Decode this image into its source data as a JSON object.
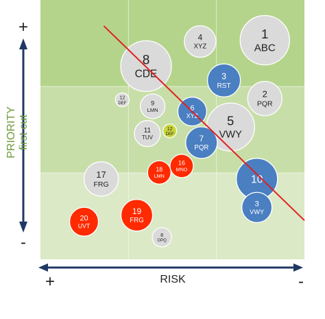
{
  "chart_data": {
    "type": "scatter",
    "title": "",
    "xlabel": "RISK",
    "ylabel": "PRIORITY",
    "ylabel_sub": "first cut",
    "x_low_label": "+",
    "x_high_label": "-",
    "y_high_label": "+",
    "y_low_label": "-",
    "grid": true,
    "grid_columns": 3,
    "grid_rows": 3,
    "xlim": [
      0,
      100
    ],
    "ylim": [
      0,
      100
    ],
    "trend_line": {
      "from": [
        24,
        90
      ],
      "to": [
        100,
        15
      ],
      "color": "#e02020"
    },
    "colors": {
      "grey": "#dadada",
      "blue": "#4a7fc1",
      "red": "#ff2a00",
      "yellow": "#c8d63c",
      "background_top": "#b4d48c",
      "background_mid": "#c8dea8",
      "background_bottom": "#dbe9c6",
      "axis": "#1f3864",
      "ylabel": "#6f9a3a"
    },
    "points": [
      {
        "id": "1",
        "label": "ABC",
        "x": 85,
        "y": 84.5,
        "size": 36,
        "color": "grey"
      },
      {
        "id": "4",
        "label": "XYZ",
        "x": 60.5,
        "y": 84,
        "size": 23,
        "color": "grey"
      },
      {
        "id": "8",
        "label": "CDE",
        "x": 40,
        "y": 74.5,
        "size": 37,
        "color": "grey"
      },
      {
        "id": "3",
        "label": "RST",
        "x": 69.5,
        "y": 69,
        "size": 24,
        "color": "blue"
      },
      {
        "id": "2",
        "label": "PQR",
        "x": 85,
        "y": 62,
        "size": 25,
        "color": "grey"
      },
      {
        "id": "12",
        "label": "DEF",
        "x": 31,
        "y": 61.5,
        "size": 10,
        "color": "grey"
      },
      {
        "id": "9",
        "label": "LMN",
        "x": 42.5,
        "y": 59,
        "size": 18,
        "color": "grey"
      },
      {
        "id": "6",
        "label": "XYZ",
        "x": 57.5,
        "y": 57,
        "size": 21,
        "color": "blue"
      },
      {
        "id": "5",
        "label": "VWY",
        "x": 72,
        "y": 51,
        "size": 35,
        "color": "grey"
      },
      {
        "id": "11",
        "label": "TUV",
        "x": 40.5,
        "y": 48.5,
        "size": 19,
        "color": "grey"
      },
      {
        "id": "12",
        "label": "DEF",
        "x": 49,
        "y": 49.5,
        "size": 10,
        "color": "yellow"
      },
      {
        "id": "7",
        "label": "PQR",
        "x": 61,
        "y": 45,
        "size": 23,
        "color": "blue"
      },
      {
        "id": "16",
        "label": "MNO",
        "x": 53.5,
        "y": 36,
        "size": 17,
        "color": "red"
      },
      {
        "id": "18",
        "label": "LMN",
        "x": 45,
        "y": 33.5,
        "size": 17,
        "color": "red"
      },
      {
        "id": "17",
        "label": "FRG",
        "x": 23,
        "y": 31,
        "size": 25,
        "color": "grey"
      },
      {
        "id": "10",
        "label": "",
        "x": 82,
        "y": 31,
        "size": 30,
        "color": "blue"
      },
      {
        "id": "3",
        "label": "VWY",
        "x": 82,
        "y": 20,
        "size": 22,
        "color": "blue"
      },
      {
        "id": "19",
        "label": "FRG",
        "x": 36.5,
        "y": 17,
        "size": 23,
        "color": "red"
      },
      {
        "id": "20",
        "label": "UVT",
        "x": 16.5,
        "y": 14.5,
        "size": 21,
        "color": "red"
      },
      {
        "id": "8",
        "label": "OPQ",
        "x": 46,
        "y": 8.5,
        "size": 14,
        "color": "grey"
      }
    ]
  }
}
